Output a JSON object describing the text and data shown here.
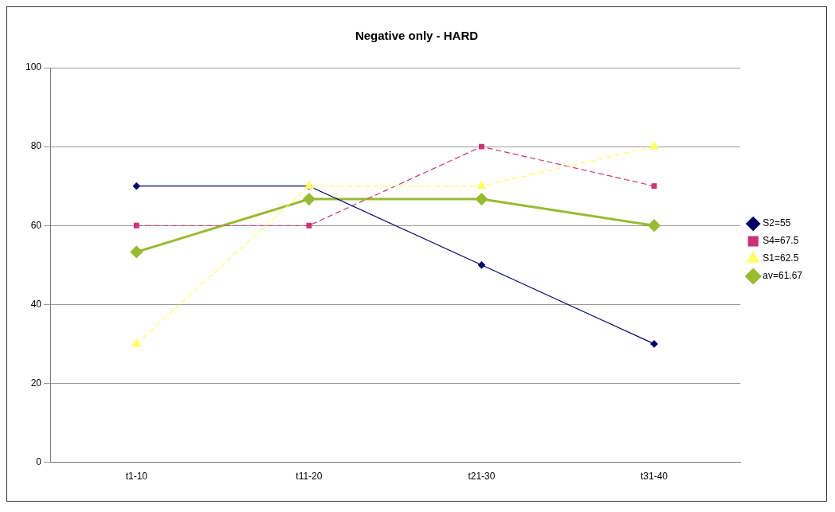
{
  "chart_data": {
    "type": "line",
    "title": "Negative only - HARD",
    "categories": [
      "t1-10",
      "t11-20",
      "t21-30",
      "t31-40"
    ],
    "series": [
      {
        "name": "S2=55",
        "color": "#000066",
        "values": [
          70,
          70,
          50,
          30
        ],
        "marker": "diamond",
        "line_style": "solid"
      },
      {
        "name": "S4=67.5",
        "color": "#cc3377",
        "values": [
          60,
          60,
          80,
          70
        ],
        "marker": "square",
        "line_style": "dashed"
      },
      {
        "name": "S1=62.5",
        "color": "#ffff66",
        "values": [
          30,
          70,
          70,
          80
        ],
        "marker": "triangle",
        "line_style": "dashed"
      },
      {
        "name": "av=61.67",
        "color": "#99bb33",
        "values": [
          53.3,
          66.7,
          66.7,
          60
        ],
        "marker": "diamond",
        "line_style": "solid"
      }
    ],
    "ylim": [
      0,
      100
    ],
    "yticks": [
      0,
      20,
      40,
      60,
      80,
      100
    ],
    "grid": "y",
    "legend": "right"
  }
}
